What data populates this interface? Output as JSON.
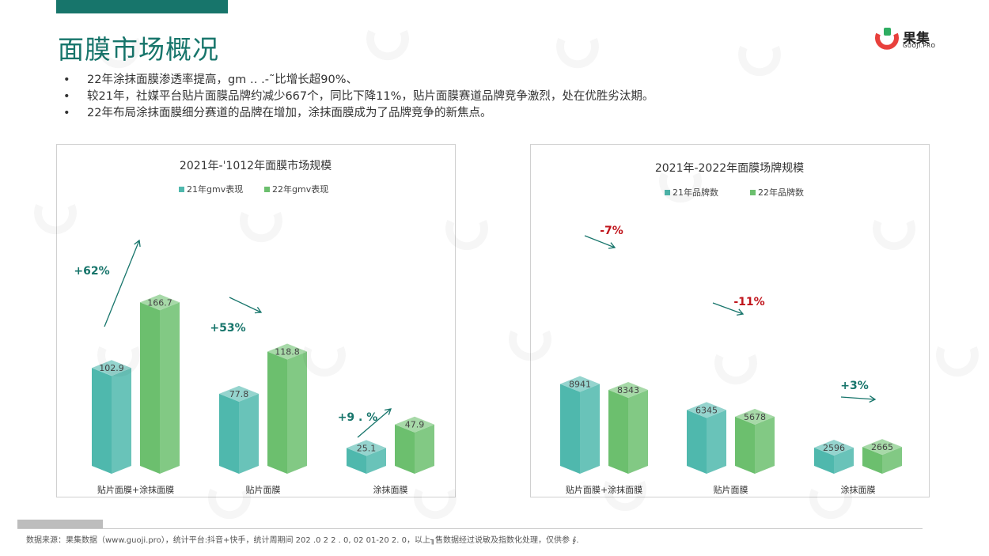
{
  "page": {
    "title": "面膜市场概况",
    "bullets": [
      "22年涂抹面膜渗透率提高，gm ‥ .-˜比增长超90%、",
      "较21年，社媒平台贴片面膜品牌约减少667个，同比下降11%，贴片面膜赛道品牌竞争激烈，处在优胜劣汰期。",
      "22年布局涂抹面膜细分赛道的品牌在增加，涂抹面膜成为了品牌竞争的新焦点。"
    ],
    "bullet_marker": "•",
    "footer": "数据来源：果集数据（www.guoji.pro），统计平台:抖音+快手，统计周期间   202 .0   2 2 . 0,   02  01-20 2. 0，以上╖售数据经过说敏及指数化处理，仅供参 ∮."
  },
  "logo": {
    "name": "果集",
    "sub": "GUOJI.PRO",
    "icon": "guoji-logo-icon",
    "accent": "#e8403c"
  },
  "colors": {
    "series21": "#4fb8ad",
    "series22": "#6cbf6e",
    "accent": "#17756b",
    "negative": "#c0151c"
  },
  "chart_data": [
    {
      "type": "bar",
      "title": "2021年-ˈ1012年面膜市场规模",
      "categories": [
        "贴片面膜+涂抹面膜",
        "贴片面膜",
        "涂抹面膜"
      ],
      "series": [
        {
          "name": "21年gmv表现",
          "values": [
            102.9,
            77.8,
            25.1
          ],
          "labels": [
            "102.9",
            "77.8",
            "25.1"
          ]
        },
        {
          "name": "22年gmv表现",
          "values": [
            166.7,
            118.8,
            47.9
          ],
          "labels": [
            "166.7",
            "118.8",
            "47.9"
          ]
        }
      ],
      "annotations": [
        "+62%",
        "+53%",
        "+9 . %"
      ],
      "ylim": [
        0,
        180
      ],
      "legend": "top",
      "grid": false
    },
    {
      "type": "bar",
      "title": "2021年-2022年面膜场牌规模",
      "categories": [
        "贴片面膜+涂抹面膜",
        "贴片面膜",
        "涂抹面膜"
      ],
      "series": [
        {
          "name": "21年品牌数",
          "values": [
            8941,
            6345,
            2596
          ],
          "labels": [
            "8941",
            "6345",
            "2596"
          ]
        },
        {
          "name": "22年品牌数",
          "values": [
            8343,
            5678,
            2665
          ],
          "labels": [
            "8343",
            "5678",
            "2665"
          ]
        }
      ],
      "annotations": [
        "-7%",
        "-11%",
        "+3%"
      ],
      "ylim": [
        0,
        10000
      ],
      "legend": "top",
      "grid": false
    }
  ]
}
